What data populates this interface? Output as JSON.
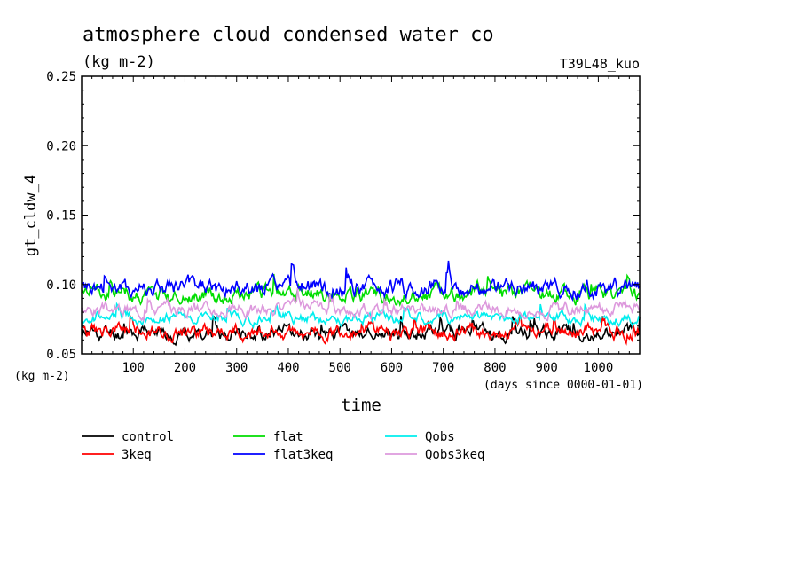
{
  "chart_data": {
    "type": "line",
    "title": "atmosphere cloud condensed water co",
    "subtitle": "(kg m-2)",
    "run_label": "T39L48_kuo",
    "ylabel": "gt_cldw_4",
    "y_units_label": "(kg m-2)",
    "xlabel": "time",
    "x_units_label": "(days since 0000-01-01)",
    "xlim": [
      0,
      1080
    ],
    "ylim": [
      0.05,
      0.25
    ],
    "x_ticks": [
      100,
      200,
      300,
      400,
      500,
      600,
      700,
      800,
      900,
      1000
    ],
    "x_tick_labels": [
      "100",
      "200",
      "300",
      "400",
      "500",
      "600",
      "700",
      "800",
      "900",
      "1000"
    ],
    "y_ticks": [
      0.05,
      0.1,
      0.15,
      0.2,
      0.25
    ],
    "y_tick_labels": [
      "0.05",
      "0.10",
      "0.15",
      "0.20",
      "0.25"
    ],
    "grid": false,
    "legend_placement": "bottom",
    "series": [
      {
        "name": "control",
        "color": "#000000",
        "mean": 0.065,
        "amp": 0.0045,
        "seed": 11
      },
      {
        "name": "3keq",
        "color": "#ff0000",
        "mean": 0.066,
        "amp": 0.0045,
        "seed": 23
      },
      {
        "name": "flat",
        "color": "#00dd00",
        "mean": 0.093,
        "amp": 0.005,
        "seed": 37
      },
      {
        "name": "flat3keq",
        "color": "#0000ff",
        "mean": 0.097,
        "amp": 0.0055,
        "seed": 41
      },
      {
        "name": "Qobs",
        "color": "#00eeee",
        "mean": 0.076,
        "amp": 0.0035,
        "seed": 53
      },
      {
        "name": "Qobs3keq",
        "color": "#dd99dd",
        "mean": 0.082,
        "amp": 0.004,
        "seed": 67
      }
    ]
  }
}
